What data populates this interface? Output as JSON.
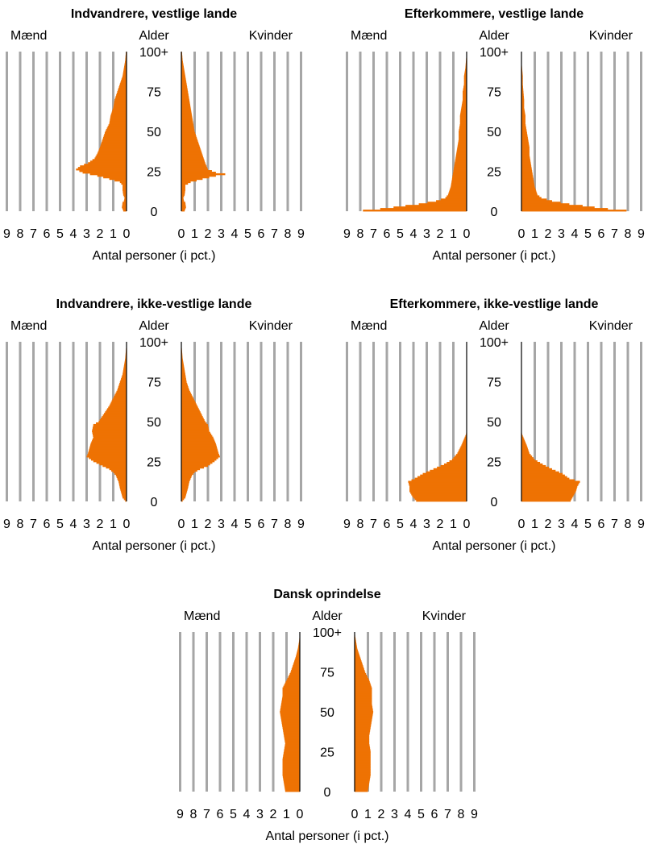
{
  "figure": {
    "bar_color": "#EE7203",
    "grid_color": "#A6A6A6",
    "axis_color": "#000000",
    "panel_labels": {
      "men": "Mænd",
      "age": "Alder",
      "women": "Kvinder",
      "xlabel": "Antal personer (i pct.)"
    }
  },
  "chart_data": [
    {
      "type": "population-pyramid",
      "title": "Indvandrere, vestlige lande",
      "men_label": "Mænd",
      "age_label": "Alder",
      "women_label": "Kvinder",
      "xlabel": "Antal personer (i pct.)",
      "xticks": [
        0,
        1,
        2,
        3,
        4,
        5,
        6,
        7,
        8,
        9
      ],
      "xlim": [
        0,
        9
      ],
      "yticks": [
        "0",
        "25",
        "50",
        "75",
        "100+"
      ],
      "ylim": [
        0,
        100
      ],
      "profile": {
        "men": [
          [
            0,
            0.25
          ],
          [
            2,
            0.35
          ],
          [
            5,
            0.3
          ],
          [
            6,
            0.2
          ],
          [
            8,
            0.15
          ],
          [
            10,
            0.25
          ],
          [
            13,
            0.3
          ],
          [
            16,
            0.3
          ],
          [
            18,
            0.5
          ],
          [
            20,
            1.3
          ],
          [
            22,
            2.2
          ],
          [
            24,
            3.3
          ],
          [
            26,
            3.8
          ],
          [
            28,
            3.5
          ],
          [
            30,
            2.9
          ],
          [
            33,
            2.4
          ],
          [
            36,
            2.2
          ],
          [
            40,
            2.0
          ],
          [
            45,
            1.8
          ],
          [
            50,
            1.6
          ],
          [
            55,
            1.3
          ],
          [
            60,
            1.2
          ],
          [
            65,
            1.0
          ],
          [
            70,
            0.9
          ],
          [
            75,
            0.7
          ],
          [
            80,
            0.5
          ],
          [
            85,
            0.3
          ],
          [
            90,
            0.2
          ],
          [
            95,
            0.1
          ],
          [
            100,
            0.05
          ]
        ],
        "women": [
          [
            0,
            0.25
          ],
          [
            2,
            0.35
          ],
          [
            5,
            0.3
          ],
          [
            6,
            0.2
          ],
          [
            8,
            0.15
          ],
          [
            10,
            0.25
          ],
          [
            13,
            0.3
          ],
          [
            16,
            0.3
          ],
          [
            18,
            0.7
          ],
          [
            20,
            1.6
          ],
          [
            22,
            2.6
          ],
          [
            23,
            3.3
          ],
          [
            24,
            2.6
          ],
          [
            26,
            2.0
          ],
          [
            30,
            1.8
          ],
          [
            35,
            1.6
          ],
          [
            40,
            1.4
          ],
          [
            45,
            1.2
          ],
          [
            50,
            1.0
          ],
          [
            55,
            0.9
          ],
          [
            60,
            0.8
          ],
          [
            65,
            0.7
          ],
          [
            70,
            0.6
          ],
          [
            75,
            0.5
          ],
          [
            80,
            0.4
          ],
          [
            85,
            0.3
          ],
          [
            90,
            0.2
          ],
          [
            95,
            0.1
          ],
          [
            100,
            0.05
          ]
        ]
      }
    },
    {
      "type": "population-pyramid",
      "title": "Efterkommere, vestlige lande",
      "men_label": "Mænd",
      "age_label": "Alder",
      "women_label": "Kvinder",
      "xlabel": "Antal personer (i pct.)",
      "xticks": [
        0,
        1,
        2,
        3,
        4,
        5,
        6,
        7,
        8,
        9
      ],
      "xlim": [
        0,
        9
      ],
      "yticks": [
        "0",
        "25",
        "50",
        "75",
        "100+"
      ],
      "ylim": [
        0,
        100
      ],
      "profile": {
        "men": [
          [
            0,
            7.8
          ],
          [
            1,
            6.5
          ],
          [
            2,
            5.5
          ],
          [
            3,
            4.6
          ],
          [
            4,
            3.6
          ],
          [
            6,
            2.3
          ],
          [
            8,
            1.6
          ],
          [
            10,
            1.4
          ],
          [
            15,
            1.2
          ],
          [
            20,
            1.1
          ],
          [
            25,
            1.0
          ],
          [
            30,
            0.9
          ],
          [
            35,
            0.8
          ],
          [
            40,
            0.7
          ],
          [
            45,
            0.6
          ],
          [
            50,
            0.6
          ],
          [
            55,
            0.5
          ],
          [
            60,
            0.5
          ],
          [
            65,
            0.4
          ],
          [
            70,
            0.3
          ],
          [
            75,
            0.3
          ],
          [
            80,
            0.2
          ],
          [
            85,
            0.2
          ],
          [
            90,
            0.1
          ],
          [
            95,
            0.05
          ],
          [
            100,
            0.0
          ]
        ],
        "women": [
          [
            0,
            7.9
          ],
          [
            1,
            6.5
          ],
          [
            2,
            5.5
          ],
          [
            3,
            4.6
          ],
          [
            4,
            3.6
          ],
          [
            6,
            2.3
          ],
          [
            8,
            1.5
          ],
          [
            10,
            1.2
          ],
          [
            15,
            1.0
          ],
          [
            20,
            0.9
          ],
          [
            25,
            0.8
          ],
          [
            30,
            0.7
          ],
          [
            35,
            0.6
          ],
          [
            40,
            0.6
          ],
          [
            45,
            0.5
          ],
          [
            50,
            0.4
          ],
          [
            55,
            0.3
          ],
          [
            60,
            0.3
          ],
          [
            65,
            0.2
          ],
          [
            70,
            0.2
          ],
          [
            75,
            0.15
          ],
          [
            80,
            0.1
          ],
          [
            85,
            0.1
          ],
          [
            90,
            0.05
          ],
          [
            95,
            0.0
          ],
          [
            100,
            0.0
          ]
        ]
      }
    },
    {
      "type": "population-pyramid",
      "title": "Indvandrere, ikke-vestlige lande",
      "men_label": "Mænd",
      "age_label": "Alder",
      "women_label": "Kvinder",
      "xlabel": "Antal personer (i pct.)",
      "xticks": [
        0,
        1,
        2,
        3,
        4,
        5,
        6,
        7,
        8,
        9
      ],
      "xlim": [
        0,
        9
      ],
      "yticks": [
        "0",
        "25",
        "50",
        "75",
        "100+"
      ],
      "ylim": [
        0,
        100
      ],
      "profile": {
        "men": [
          [
            0,
            0.1
          ],
          [
            2,
            0.3
          ],
          [
            5,
            0.4
          ],
          [
            8,
            0.5
          ],
          [
            12,
            0.6
          ],
          [
            16,
            0.8
          ],
          [
            18,
            1.0
          ],
          [
            20,
            1.3
          ],
          [
            22,
            1.8
          ],
          [
            25,
            2.5
          ],
          [
            28,
            3.0
          ],
          [
            30,
            2.9
          ],
          [
            33,
            2.8
          ],
          [
            36,
            2.7
          ],
          [
            40,
            2.5
          ],
          [
            44,
            2.6
          ],
          [
            48,
            2.5
          ],
          [
            50,
            2.1
          ],
          [
            55,
            1.7
          ],
          [
            60,
            1.3
          ],
          [
            65,
            1.0
          ],
          [
            70,
            0.7
          ],
          [
            75,
            0.5
          ],
          [
            80,
            0.3
          ],
          [
            85,
            0.2
          ],
          [
            90,
            0.1
          ],
          [
            95,
            0.05
          ],
          [
            100,
            0.0
          ]
        ],
        "women": [
          [
            0,
            0.1
          ],
          [
            2,
            0.3
          ],
          [
            5,
            0.4
          ],
          [
            8,
            0.5
          ],
          [
            12,
            0.6
          ],
          [
            16,
            0.8
          ],
          [
            18,
            1.0
          ],
          [
            20,
            1.4
          ],
          [
            22,
            2.0
          ],
          [
            25,
            2.5
          ],
          [
            28,
            2.9
          ],
          [
            30,
            2.8
          ],
          [
            33,
            2.7
          ],
          [
            36,
            2.6
          ],
          [
            40,
            2.4
          ],
          [
            44,
            2.1
          ],
          [
            48,
            2.0
          ],
          [
            50,
            1.8
          ],
          [
            55,
            1.5
          ],
          [
            60,
            1.2
          ],
          [
            65,
            0.9
          ],
          [
            70,
            0.6
          ],
          [
            75,
            0.4
          ],
          [
            80,
            0.3
          ],
          [
            85,
            0.2
          ],
          [
            90,
            0.1
          ],
          [
            95,
            0.05
          ],
          [
            100,
            0.0
          ]
        ]
      }
    },
    {
      "type": "population-pyramid",
      "title": "Efterkommere, ikke-vestlige lande",
      "men_label": "Mænd",
      "age_label": "Alder",
      "women_label": "Kvinder",
      "xlabel": "Antal personer (i pct.)",
      "xticks": [
        0,
        1,
        2,
        3,
        4,
        5,
        6,
        7,
        8,
        9
      ],
      "xlim": [
        0,
        9
      ],
      "yticks": [
        "0",
        "25",
        "50",
        "75",
        "100+"
      ],
      "ylim": [
        0,
        100
      ],
      "profile": {
        "men": [
          [
            0,
            3.8
          ],
          [
            3,
            4.1
          ],
          [
            6,
            4.3
          ],
          [
            9,
            4.3
          ],
          [
            12,
            4.4
          ],
          [
            14,
            3.9
          ],
          [
            17,
            3.3
          ],
          [
            20,
            2.5
          ],
          [
            23,
            1.7
          ],
          [
            26,
            1.1
          ],
          [
            30,
            0.7
          ],
          [
            35,
            0.4
          ],
          [
            38,
            0.25
          ],
          [
            40,
            0.15
          ],
          [
            42,
            0.05
          ],
          [
            45,
            0.0
          ],
          [
            100,
            0.0
          ]
        ],
        "women": [
          [
            0,
            3.7
          ],
          [
            3,
            3.9
          ],
          [
            6,
            4.1
          ],
          [
            9,
            4.2
          ],
          [
            12,
            4.4
          ],
          [
            14,
            3.6
          ],
          [
            17,
            3.1
          ],
          [
            20,
            2.3
          ],
          [
            23,
            1.6
          ],
          [
            26,
            1.0
          ],
          [
            30,
            0.6
          ],
          [
            35,
            0.4
          ],
          [
            38,
            0.25
          ],
          [
            40,
            0.15
          ],
          [
            42,
            0.05
          ],
          [
            45,
            0.0
          ],
          [
            100,
            0.0
          ]
        ]
      }
    },
    {
      "type": "population-pyramid",
      "title": "Dansk oprindelse",
      "men_label": "Mænd",
      "age_label": "Alder",
      "women_label": "Kvinder",
      "xlabel": "Antal personer (i pct.)",
      "xticks": [
        0,
        1,
        2,
        3,
        4,
        5,
        6,
        7,
        8,
        9
      ],
      "xlim": [
        0,
        9
      ],
      "yticks": [
        "0",
        "25",
        "50",
        "75",
        "100+"
      ],
      "ylim": [
        0,
        100
      ],
      "profile": {
        "men": [
          [
            0,
            1.1
          ],
          [
            5,
            1.2
          ],
          [
            10,
            1.3
          ],
          [
            15,
            1.3
          ],
          [
            20,
            1.3
          ],
          [
            25,
            1.2
          ],
          [
            30,
            1.1
          ],
          [
            35,
            1.2
          ],
          [
            40,
            1.3
          ],
          [
            45,
            1.4
          ],
          [
            50,
            1.5
          ],
          [
            55,
            1.4
          ],
          [
            60,
            1.3
          ],
          [
            65,
            1.3
          ],
          [
            70,
            1.0
          ],
          [
            75,
            0.7
          ],
          [
            80,
            0.5
          ],
          [
            85,
            0.3
          ],
          [
            90,
            0.15
          ],
          [
            95,
            0.05
          ],
          [
            100,
            0.0
          ]
        ],
        "women": [
          [
            0,
            1.0
          ],
          [
            5,
            1.1
          ],
          [
            10,
            1.2
          ],
          [
            15,
            1.2
          ],
          [
            20,
            1.2
          ],
          [
            25,
            1.2
          ],
          [
            30,
            1.1
          ],
          [
            35,
            1.1
          ],
          [
            40,
            1.2
          ],
          [
            45,
            1.3
          ],
          [
            50,
            1.4
          ],
          [
            55,
            1.3
          ],
          [
            60,
            1.3
          ],
          [
            65,
            1.3
          ],
          [
            70,
            1.1
          ],
          [
            75,
            0.8
          ],
          [
            80,
            0.6
          ],
          [
            85,
            0.4
          ],
          [
            90,
            0.2
          ],
          [
            95,
            0.1
          ],
          [
            100,
            0.0
          ]
        ]
      }
    }
  ]
}
